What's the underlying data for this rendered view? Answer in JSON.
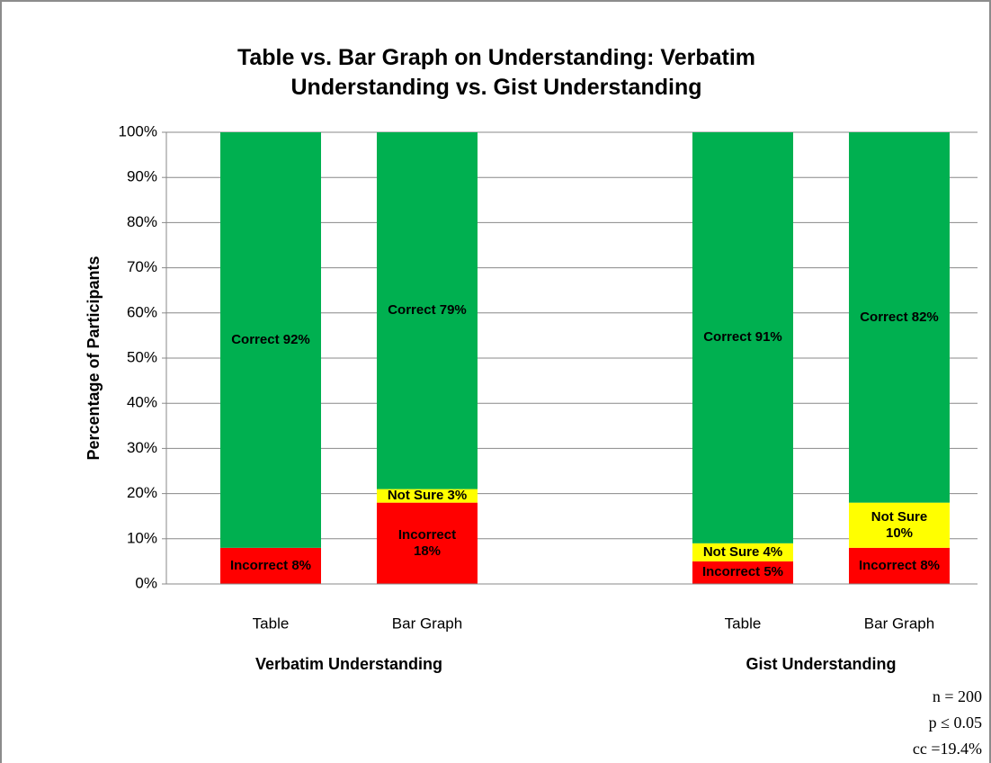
{
  "chart_data": {
    "type": "stacked_bar",
    "title": "Table vs. Bar Graph on Understanding: Verbatim Understanding vs. Gist Understanding",
    "y_label": "Percentage of Participants",
    "categories": [
      "Table",
      "Bar Graph",
      "Table",
      "Bar Graph"
    ],
    "groups": [
      "Verbatim Understanding",
      "Gist Understanding"
    ],
    "series": [
      {
        "color": "#ff0000",
        "values": [
          8,
          18,
          5,
          8
        ],
        "value_labels": [
          "Incorrect 8%",
          "Incorrect 18%",
          "Incorrect 5%",
          "Incorrect 8%"
        ]
      },
      {
        "color": "#ffff00",
        "values": [
          null,
          3,
          4,
          10
        ],
        "value_labels": [
          null,
          "Not Sure 3%",
          "Not Sure 4%",
          "Not Sure 10%"
        ]
      },
      {
        "color": "#00b050",
        "values": [
          92,
          79,
          91,
          82
        ],
        "value_labels": [
          "Correct 92%",
          "Correct 79%",
          "Correct 91%",
          "Correct 82%"
        ]
      }
    ],
    "ylim": [
      0,
      100
    ],
    "yticks": [
      {
        "value": 0,
        "label": "0%"
      },
      {
        "value": 10,
        "label": "10%"
      },
      {
        "value": 20,
        "label": "20%"
      },
      {
        "value": 30,
        "label": "30%"
      },
      {
        "value": 40,
        "label": "40%"
      },
      {
        "value": 50,
        "label": "50%"
      },
      {
        "value": 60,
        "label": "60%"
      },
      {
        "value": 70,
        "label": "70%"
      },
      {
        "value": 80,
        "label": "80%"
      },
      {
        "value": 90,
        "label": "90%"
      },
      {
        "value": 100,
        "label": "100%"
      }
    ],
    "grid": true,
    "annotations": [
      "n = 200",
      "p ≤ 0.05",
      "cc =19.4%"
    ]
  }
}
